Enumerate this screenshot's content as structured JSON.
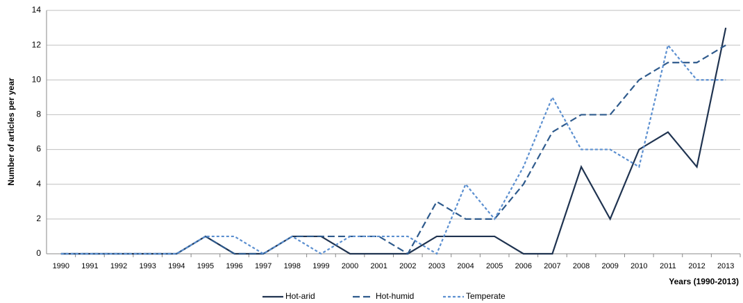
{
  "chart_data": {
    "type": "line",
    "y_label": "Number of articles per year",
    "x_label": "Years (1990-2013)",
    "categories": [
      "1990",
      "1991",
      "1992",
      "1993",
      "1994",
      "1995",
      "1996",
      "1997",
      "1998",
      "1999",
      "2000",
      "2001",
      "2002",
      "2003",
      "2004",
      "2005",
      "2006",
      "2007",
      "2008",
      "2009",
      "2010",
      "2011",
      "2012",
      "2013"
    ],
    "series": [
      {
        "name": "Hot-arid",
        "color": "#1f3350",
        "style": "solid",
        "values": [
          0,
          0,
          0,
          0,
          0,
          1,
          0,
          0,
          1,
          1,
          0,
          0,
          0,
          1,
          1,
          1,
          0,
          0,
          5,
          2,
          6,
          7,
          5,
          13
        ]
      },
      {
        "name": "Hot-humid",
        "color": "#2e5a8c",
        "style": "dashed",
        "values": [
          0,
          0,
          0,
          0,
          0,
          1,
          0,
          0,
          1,
          1,
          1,
          1,
          0,
          3,
          2,
          2,
          4,
          7,
          8,
          8,
          10,
          11,
          11,
          12
        ]
      },
      {
        "name": "Temperate",
        "color": "#5b8fd0",
        "style": "dotted",
        "values": [
          0,
          0,
          0,
          0,
          0,
          1,
          1,
          0,
          1,
          0,
          1,
          1,
          1,
          0,
          4,
          2,
          5,
          9,
          6,
          6,
          5,
          12,
          10,
          10
        ]
      }
    ],
    "ylim": [
      0,
      14
    ],
    "yticks": [
      0,
      2,
      4,
      6,
      8,
      10,
      12,
      14
    ],
    "grid": true,
    "legend": "bottom"
  }
}
